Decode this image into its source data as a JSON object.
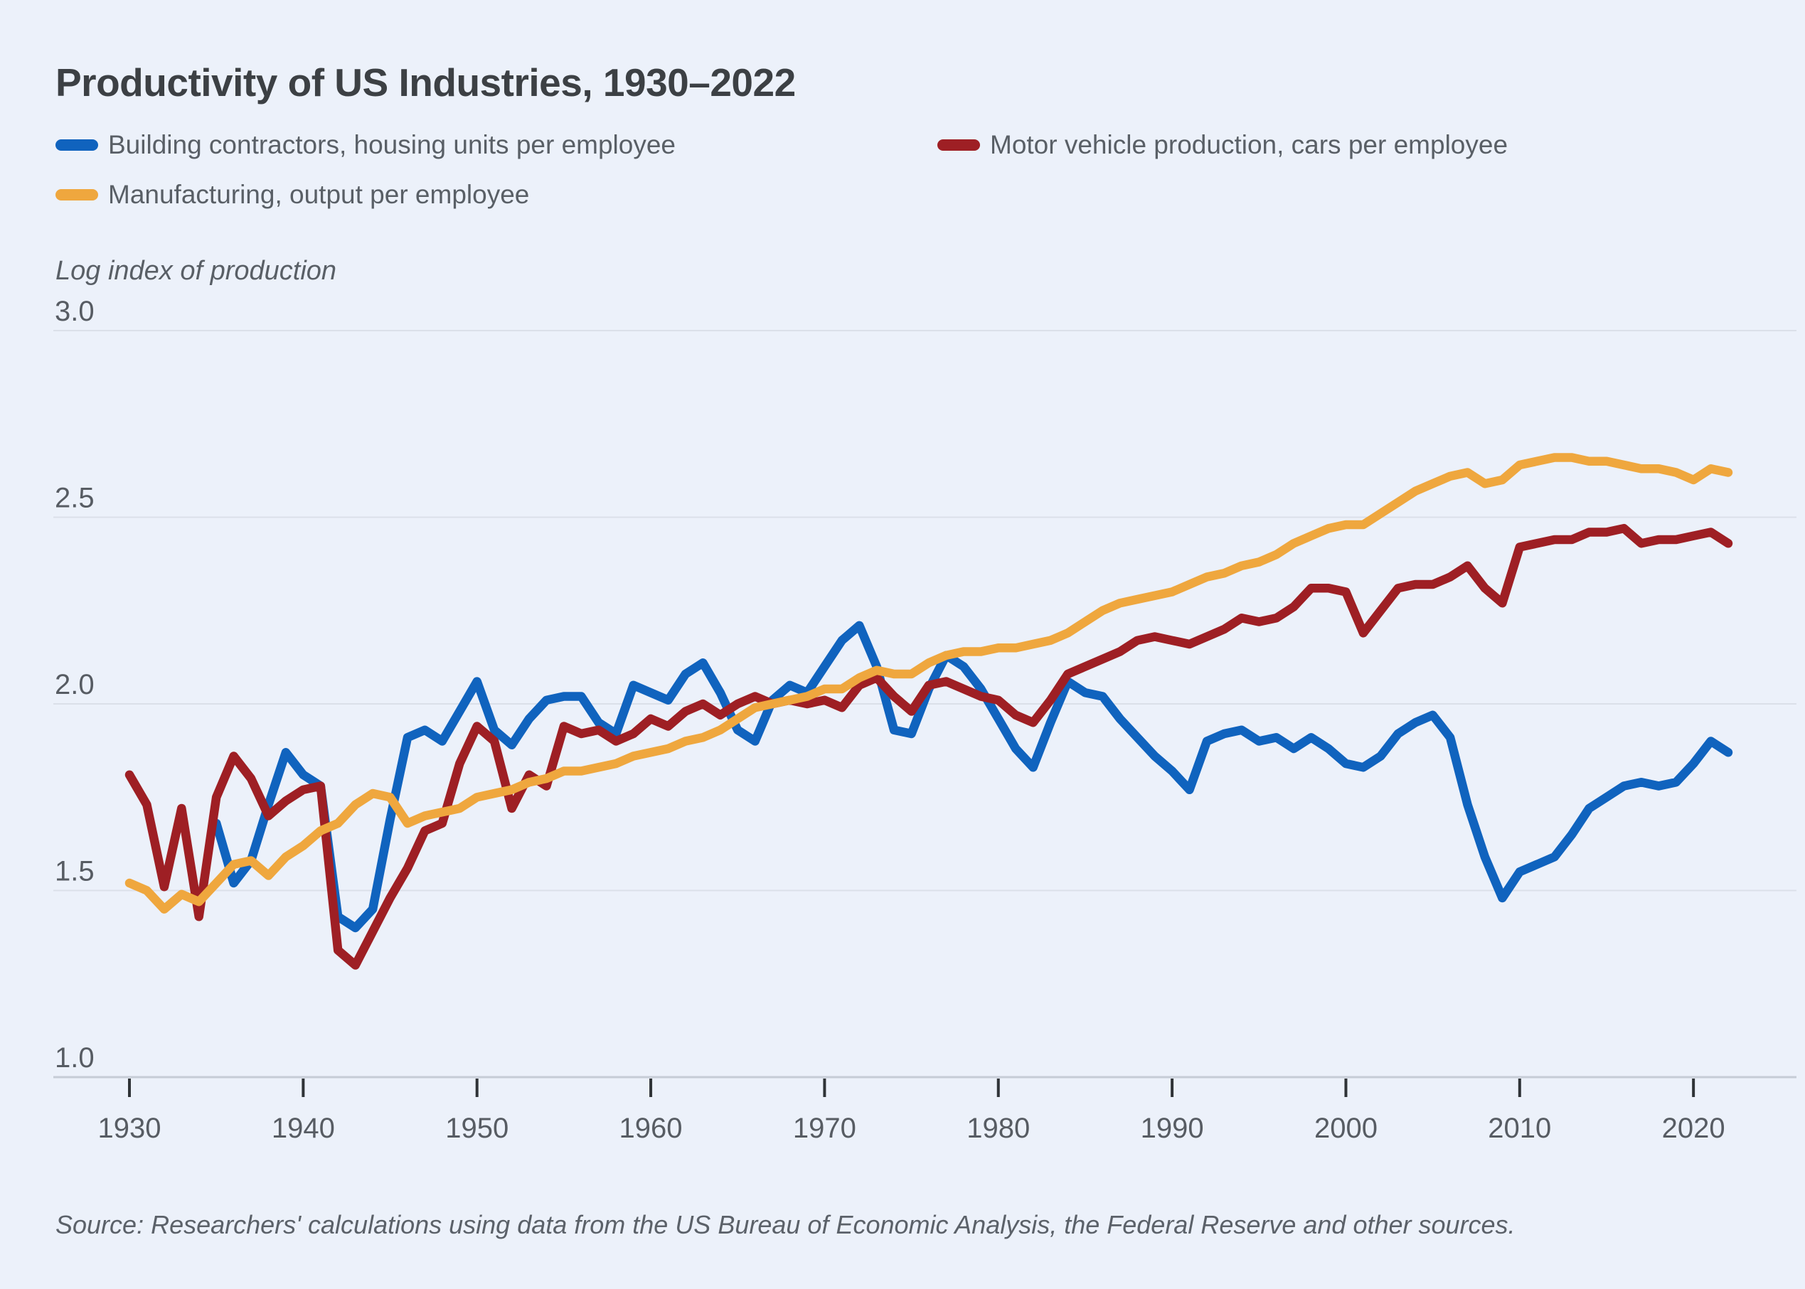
{
  "title": "Productivity of US Industries, 1930–2022",
  "y_axis_label": "Log index of production",
  "source": "Source: Researchers' calculations using data from the US Bureau of Economic Analysis, the Federal Reserve and other sources.",
  "colors": {
    "background": "#ecf1fa",
    "gridline": "#dbe0e9",
    "axis_line": "#c6ccd6",
    "tick_mark": "#2f3337",
    "tick_label": "#575c63",
    "title_text": "#3c4044",
    "blue": "#1063be",
    "red": "#9e1f24",
    "yellow": "#efa73e"
  },
  "chart_data": {
    "type": "line",
    "title": "Productivity of US Industries, 1930–2022",
    "xlabel": "",
    "ylabel": "Log index of production",
    "ylim": [
      1.0,
      3.0
    ],
    "xlim": [
      1925.6,
      2025.9
    ],
    "grid": "horizontal",
    "legend_position": "top-left",
    "x_ticks": [
      1930,
      1940,
      1950,
      1960,
      1970,
      1980,
      1990,
      2000,
      2010,
      2020
    ],
    "y_ticks": [
      3.0,
      2.5,
      2.0,
      1.5,
      1.0
    ],
    "x": [
      1930,
      1931,
      1932,
      1933,
      1934,
      1935,
      1936,
      1937,
      1938,
      1939,
      1940,
      1941,
      1942,
      1943,
      1944,
      1945,
      1946,
      1947,
      1948,
      1949,
      1950,
      1951,
      1952,
      1953,
      1954,
      1955,
      1956,
      1957,
      1958,
      1959,
      1960,
      1961,
      1962,
      1963,
      1964,
      1965,
      1966,
      1967,
      1968,
      1969,
      1970,
      1971,
      1972,
      1973,
      1974,
      1975,
      1976,
      1977,
      1978,
      1979,
      1980,
      1981,
      1982,
      1983,
      1984,
      1985,
      1986,
      1987,
      1988,
      1989,
      1990,
      1991,
      1992,
      1993,
      1994,
      1995,
      1996,
      1997,
      1998,
      1999,
      2000,
      2001,
      2002,
      2003,
      2004,
      2005,
      2006,
      2007,
      2008,
      2009,
      2010,
      2011,
      2012,
      2013,
      2014,
      2015,
      2016,
      2017,
      2018,
      2019,
      2020,
      2021,
      2022
    ],
    "series": [
      {
        "name": "Building contractors, housing units per employee",
        "color": "#1063be",
        "values": [
          null,
          null,
          null,
          null,
          null,
          1.68,
          1.52,
          1.58,
          1.73,
          1.87,
          1.81,
          1.78,
          1.43,
          1.4,
          1.45,
          1.69,
          1.91,
          1.93,
          1.9,
          1.98,
          2.06,
          1.93,
          1.89,
          1.96,
          2.01,
          2.02,
          2.02,
          1.95,
          1.92,
          2.05,
          2.03,
          2.01,
          2.08,
          2.11,
          2.03,
          1.93,
          1.9,
          2.01,
          2.05,
          2.03,
          2.1,
          2.17,
          2.21,
          2.1,
          1.93,
          1.92,
          2.04,
          2.13,
          2.1,
          2.04,
          1.96,
          1.88,
          1.83,
          1.95,
          2.06,
          2.03,
          2.02,
          1.96,
          1.91,
          1.86,
          1.82,
          1.77,
          1.9,
          1.92,
          1.93,
          1.9,
          1.91,
          1.88,
          1.91,
          1.88,
          1.84,
          1.83,
          1.86,
          1.92,
          1.95,
          1.97,
          1.91,
          1.73,
          1.59,
          1.48,
          1.55,
          1.57,
          1.59,
          1.65,
          1.72,
          1.75,
          1.78,
          1.79,
          1.78,
          1.79,
          1.84,
          1.9,
          1.87
        ]
      },
      {
        "name": "Motor vehicle production, cars per employee",
        "color": "#9e1f24",
        "values": [
          1.81,
          1.73,
          1.51,
          1.72,
          1.43,
          1.75,
          1.86,
          1.8,
          1.7,
          1.74,
          1.77,
          1.78,
          1.34,
          1.3,
          1.39,
          1.48,
          1.56,
          1.66,
          1.68,
          1.84,
          1.94,
          1.9,
          1.72,
          1.81,
          1.78,
          1.94,
          1.92,
          1.93,
          1.9,
          1.92,
          1.96,
          1.94,
          1.98,
          2.0,
          1.97,
          2.0,
          2.02,
          2.0,
          2.01,
          2.0,
          2.01,
          1.99,
          2.05,
          2.07,
          2.02,
          1.98,
          2.05,
          2.06,
          2.04,
          2.02,
          2.01,
          1.97,
          1.95,
          2.01,
          2.08,
          2.1,
          2.12,
          2.14,
          2.17,
          2.18,
          2.17,
          2.16,
          2.18,
          2.2,
          2.23,
          2.22,
          2.23,
          2.26,
          2.31,
          2.31,
          2.3,
          2.19,
          2.25,
          2.31,
          2.32,
          2.32,
          2.34,
          2.37,
          2.31,
          2.27,
          2.42,
          2.43,
          2.44,
          2.44,
          2.46,
          2.46,
          2.47,
          2.43,
          2.44,
          2.44,
          2.45,
          2.46,
          2.43
        ]
      },
      {
        "name": "Manufacturing, output per employee",
        "color": "#efa73e",
        "values": [
          1.52,
          1.5,
          1.45,
          1.49,
          1.47,
          1.52,
          1.57,
          1.58,
          1.54,
          1.59,
          1.62,
          1.66,
          1.68,
          1.73,
          1.76,
          1.75,
          1.68,
          1.7,
          1.71,
          1.72,
          1.75,
          1.76,
          1.77,
          1.79,
          1.8,
          1.82,
          1.82,
          1.83,
          1.84,
          1.86,
          1.87,
          1.88,
          1.9,
          1.91,
          1.93,
          1.96,
          1.99,
          2.0,
          2.01,
          2.02,
          2.04,
          2.04,
          2.07,
          2.09,
          2.08,
          2.08,
          2.11,
          2.13,
          2.14,
          2.14,
          2.15,
          2.15,
          2.16,
          2.17,
          2.19,
          2.22,
          2.25,
          2.27,
          2.28,
          2.29,
          2.3,
          2.32,
          2.34,
          2.35,
          2.37,
          2.38,
          2.4,
          2.43,
          2.45,
          2.47,
          2.48,
          2.48,
          2.51,
          2.54,
          2.57,
          2.59,
          2.61,
          2.62,
          2.59,
          2.6,
          2.64,
          2.65,
          2.66,
          2.66,
          2.65,
          2.65,
          2.64,
          2.63,
          2.63,
          2.62,
          2.6,
          2.63,
          2.62
        ]
      }
    ]
  },
  "legend": [
    {
      "label": "Building contractors, housing units per employee"
    },
    {
      "label": "Motor vehicle production, cars per employee"
    },
    {
      "label": "Manufacturing, output per employee"
    }
  ]
}
